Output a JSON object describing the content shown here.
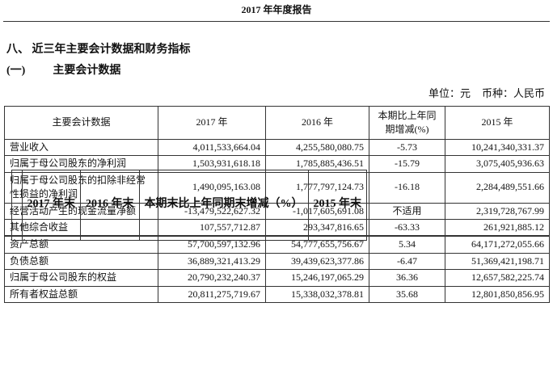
{
  "page_header": "2017 年年度报告",
  "section_title": "八、 近三年主要会计数据和财务指标",
  "subsection": {
    "number": "(一)",
    "title": "主要会计数据"
  },
  "unit": {
    "unit_label": "单位：元",
    "currency_label": "币种：人民币"
  },
  "table1": {
    "headers": [
      "主要会计数据",
      "2017 年",
      "2016 年",
      "本期比上年同期增减(%)",
      "2015 年"
    ],
    "rows": [
      [
        "营业收入",
        "4,011,533,664.04",
        "4,255,580,080.75",
        "-5.73",
        "10,241,340,331.37"
      ],
      [
        "归属于母公司股东的净利润",
        "1,503,931,618.18",
        "1,785,885,436.51",
        "-15.79",
        "3,075,405,936.63"
      ],
      [
        "归属于母公司股东的扣除非经常性损益的净利润",
        "1,490,095,163.08",
        "1,777,797,124.73",
        "-16.18",
        "2,284,489,551.66"
      ],
      [
        "经营活动产生的现金流量净额",
        "-13,479,522,627.32",
        "-1,017,605,691.08",
        "不适用",
        "2,319,728,767.99"
      ],
      [
        "其他综合收益",
        "107,557,712.87",
        "293,347,816.65",
        "-63.33",
        "261,921,885.12"
      ]
    ]
  },
  "table2": {
    "headers": [
      "",
      "2017 年末",
      "2016 年末",
      "本期末比上年同期末增减（%）",
      "2015 年末"
    ],
    "rows": [
      [
        "资产总额",
        "57,700,597,132.96",
        "54,777,655,756.67",
        "5.34",
        "64,171,272,055.66"
      ],
      [
        "负债总额",
        "36,889,321,413.29",
        "39,439,623,377.86",
        "-6.47",
        "51,369,421,198.71"
      ],
      [
        "归属于母公司股东的权益",
        "20,790,232,240.37",
        "15,246,197,065.29",
        "36.36",
        "12,657,582,225.74"
      ],
      [
        "所有者权益总额",
        "20,811,275,719.67",
        "15,338,032,378.81",
        "35.68",
        "12,801,850,856.95"
      ]
    ]
  }
}
